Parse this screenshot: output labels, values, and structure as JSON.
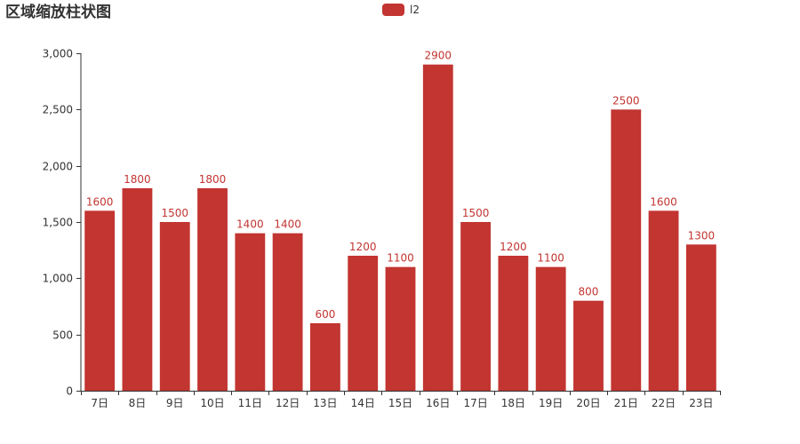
{
  "chart_data": {
    "type": "bar",
    "title": "区域缩放柱状图",
    "categories": [
      "7日",
      "8日",
      "9日",
      "10日",
      "11日",
      "12日",
      "13日",
      "14日",
      "15日",
      "16日",
      "17日",
      "18日",
      "19日",
      "20日",
      "21日",
      "22日",
      "23日"
    ],
    "series": [
      {
        "name": "l2",
        "values": [
          1600,
          1800,
          1500,
          1800,
          1400,
          1400,
          600,
          1200,
          1100,
          2900,
          1500,
          1200,
          1100,
          800,
          2500,
          1600,
          1300
        ]
      }
    ],
    "ylim": [
      0,
      3000
    ],
    "yticks": [
      0,
      500,
      1000,
      1500,
      2000,
      2500,
      3000
    ],
    "ytick_labels": [
      "0",
      "500",
      "1,000",
      "1,500",
      "2,000",
      "2,500",
      "3,000"
    ],
    "legend_position": "top-center",
    "grid": false,
    "bar_color": "#c23531",
    "axis_color": "#333333",
    "show_value_labels": true
  }
}
